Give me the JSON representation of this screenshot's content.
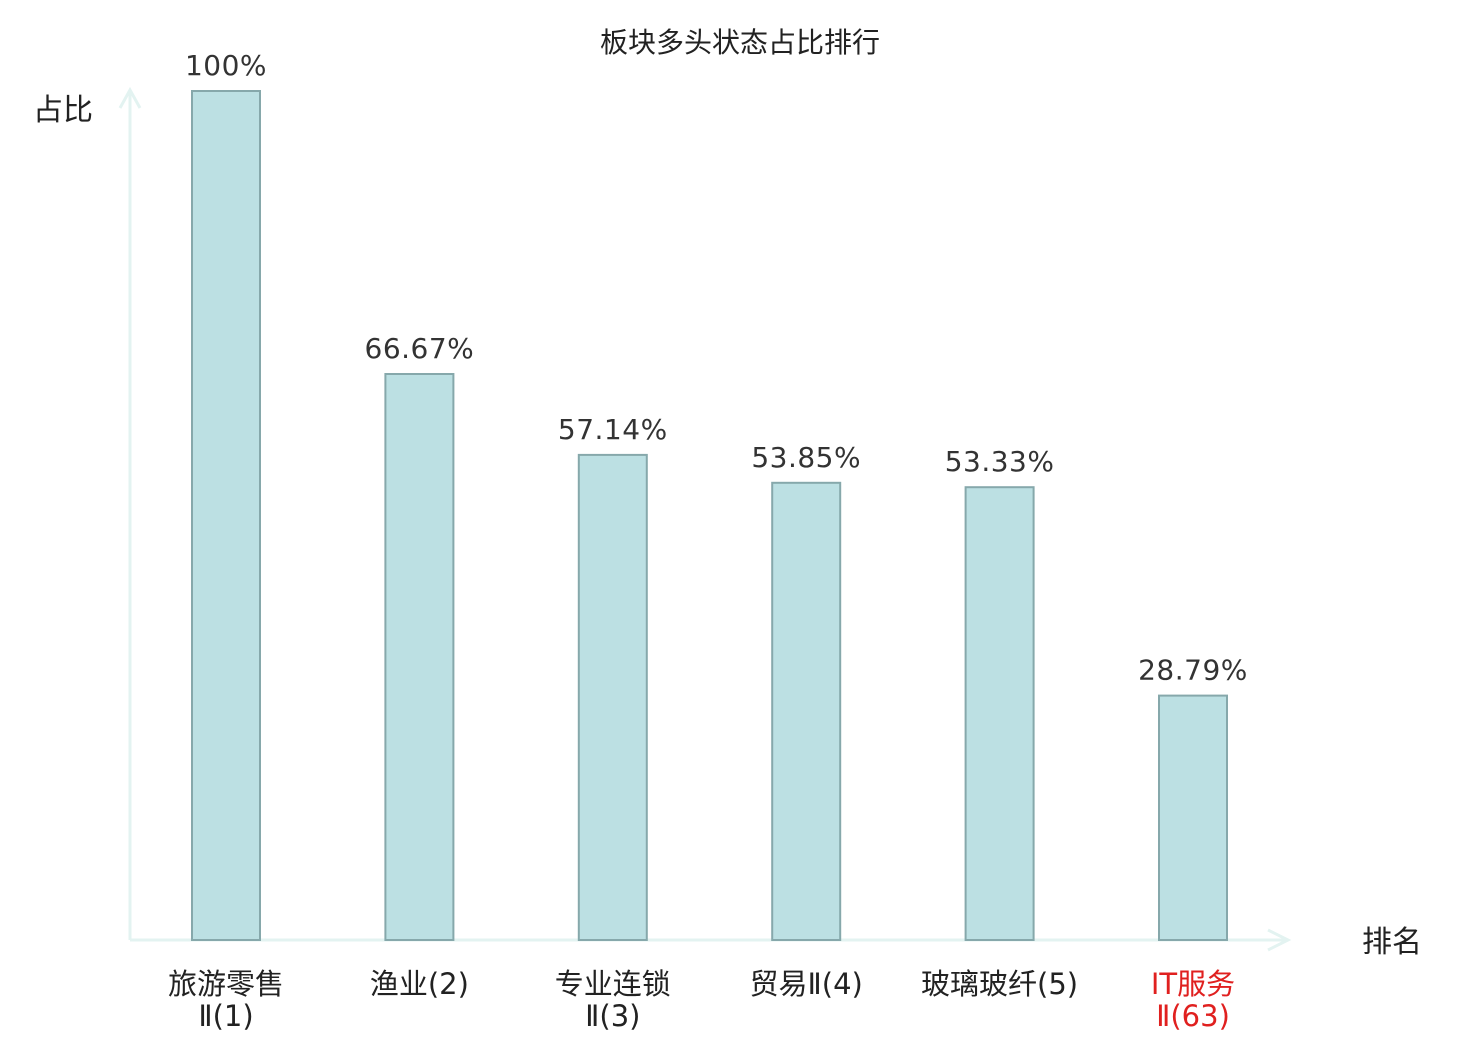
{
  "chart_data": {
    "type": "bar",
    "title": "板块多头状态占比排行",
    "ylabel": "占比",
    "xlabel": "排名",
    "ylim": [
      0,
      100
    ],
    "categories": [
      {
        "lines": [
          "旅游零售",
          "Ⅱ(1)"
        ],
        "highlight": false
      },
      {
        "lines": [
          "渔业(2)"
        ],
        "highlight": false
      },
      {
        "lines": [
          "专业连锁",
          "Ⅱ(3)"
        ],
        "highlight": false
      },
      {
        "lines": [
          "贸易Ⅱ(4)"
        ],
        "highlight": false
      },
      {
        "lines": [
          "玻璃玻纤(5)"
        ],
        "highlight": false
      },
      {
        "lines": [
          "IT服务",
          "Ⅱ(63)"
        ],
        "highlight": true
      }
    ],
    "values": [
      100,
      66.67,
      57.14,
      53.85,
      53.33,
      28.79
    ],
    "value_labels": [
      "100%",
      "66.67%",
      "57.14%",
      "53.85%",
      "53.33%",
      "28.79%"
    ],
    "grid": false,
    "legend": "none",
    "colors": {
      "bar_fill": "#bce0e3",
      "bar_stroke": "#86a8ab",
      "axis": "#e3f3f1",
      "highlight": "#e0201f"
    }
  }
}
